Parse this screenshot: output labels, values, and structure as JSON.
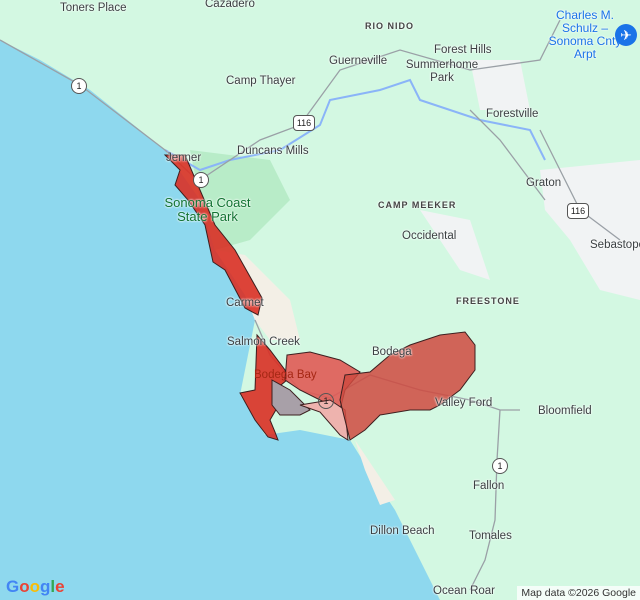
{
  "map": {
    "water_color": "#8ed8ee",
    "land_color": "#d3f8e2",
    "highlight_color": "#d93025",
    "labels": {
      "toners_place": "Toners Place",
      "cazadero": "Cazadero",
      "rio_nido": "RIO NIDO",
      "forest_hills": "Forest Hills",
      "summerhome_park": "Summerhome Park",
      "guerneville": "Guerneville",
      "camp_thayer": "Camp Thayer",
      "forestville": "Forestville",
      "duncans_mills": "Duncans Mills",
      "jenner": "Jenner",
      "state_park": "Sonoma Coast State Park",
      "graton": "Graton",
      "camp_meeker": "CAMP MEEKER",
      "occidental": "Occidental",
      "sebastopol": "Sebastopol",
      "carmet": "Carmet",
      "freestone": "FREESTONE",
      "salmon_creek": "Salmon Creek",
      "bodega": "Bodega",
      "bodega_bay": "Bodega Bay",
      "valley_ford": "Valley Ford",
      "bloomfield": "Bloomfield",
      "fallon": "Fallon",
      "dillon_beach": "Dillon Beach",
      "tomales": "Tomales",
      "ocean_roar": "Ocean Roar",
      "airport": "Charles M. Schulz –Sonoma Cnty Arpt"
    },
    "route_shields": [
      "1",
      "116",
      "1",
      "116",
      "1",
      "1"
    ],
    "attribution": "Map data ©2026 Google",
    "logo": "Google"
  }
}
